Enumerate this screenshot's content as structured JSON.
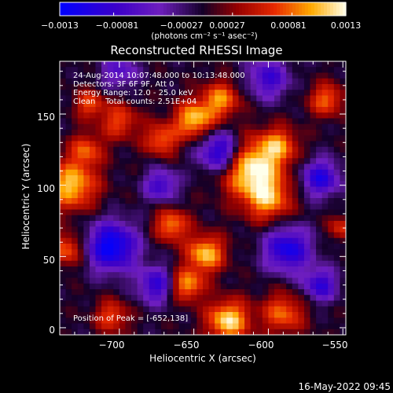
{
  "chart_data": {
    "type": "heatmap",
    "title": "Reconstructed RHESSI Image",
    "xlabel": "Heliocentric X (arcsec)",
    "ylabel": "Heliocentric Y (arcsec)",
    "xlim": [
      -740,
      -548
    ],
    "ylim": [
      -5,
      187
    ],
    "x_ticks": [
      -700,
      -650,
      -600,
      -550
    ],
    "x_tick_labels": [
      "−700",
      "−650",
      "−600",
      "−550"
    ],
    "y_ticks": [
      0,
      50,
      100,
      150
    ],
    "y_tick_labels": [
      "0",
      "50",
      "100",
      "150"
    ],
    "colorbar": {
      "ticks": [
        -0.0013,
        -0.00081,
        -0.00027,
        0.00027,
        0.00081,
        0.0013
      ],
      "tick_labels": [
        "−0.0013",
        "−0.00081",
        "−0.00027",
        "0.00027",
        "0.00081",
        "0.0013"
      ],
      "units": "(photons cm⁻² s⁻¹ asec⁻²)",
      "range": [
        -0.0013,
        0.0013
      ]
    },
    "annotations": [
      "24-Aug-2014 10:07:48.000 to 10:13:48.000",
      "Detectors: 3F 6F 9F, Att 0",
      "Energy Range: 12.0 - 25.0 keV",
      "Clean    Total counts: 2.51E+04"
    ],
    "peak_label": "Position of Peak = [-652,138]",
    "footer_date": "16-May-2022 09:45",
    "grid": false,
    "features": [
      {
        "x": -612,
        "y": 112,
        "s": 14,
        "a": 0.0013
      },
      {
        "x": -600,
        "y": 90,
        "s": 11,
        "a": 0.0009
      },
      {
        "x": -593,
        "y": 128,
        "s": 9,
        "a": 0.0008
      },
      {
        "x": -642,
        "y": 52,
        "s": 9,
        "a": 0.0011
      },
      {
        "x": -655,
        "y": 30,
        "s": 8,
        "a": 0.001
      },
      {
        "x": -665,
        "y": 72,
        "s": 8,
        "a": 0.0009
      },
      {
        "x": -650,
        "y": 146,
        "s": 9,
        "a": 0.0011
      },
      {
        "x": -632,
        "y": 160,
        "s": 9,
        "a": 0.0009
      },
      {
        "x": -672,
        "y": 132,
        "s": 8,
        "a": 0.0008
      },
      {
        "x": -732,
        "y": 100,
        "s": 12,
        "a": 0.0011
      },
      {
        "x": -722,
        "y": 125,
        "s": 8,
        "a": 0.0007
      },
      {
        "x": -720,
        "y": 157,
        "s": 7,
        "a": 0.0007
      },
      {
        "x": -735,
        "y": 55,
        "s": 8,
        "a": 0.0008
      },
      {
        "x": -705,
        "y": 8,
        "s": 8,
        "a": 0.0007
      },
      {
        "x": -627,
        "y": 5,
        "s": 10,
        "a": 0.0012
      },
      {
        "x": -590,
        "y": 10,
        "s": 10,
        "a": 0.0008
      },
      {
        "x": -561,
        "y": 160,
        "s": 8,
        "a": 0.0008
      },
      {
        "x": -551,
        "y": 70,
        "s": 6,
        "a": 0.0006
      },
      {
        "x": -700,
        "y": 145,
        "s": 9,
        "a": 0.0007
      },
      {
        "x": -632,
        "y": 123,
        "s": 10,
        "a": -0.0012
      },
      {
        "x": -705,
        "y": 57,
        "s": 12,
        "a": -0.0013
      },
      {
        "x": -672,
        "y": 100,
        "s": 8,
        "a": -0.0008
      },
      {
        "x": -587,
        "y": 55,
        "s": 11,
        "a": -0.0011
      },
      {
        "x": -565,
        "y": 105,
        "s": 9,
        "a": -0.001
      },
      {
        "x": -675,
        "y": 30,
        "s": 9,
        "a": -0.0009
      },
      {
        "x": -600,
        "y": 175,
        "s": 10,
        "a": -0.0008
      },
      {
        "x": -565,
        "y": 30,
        "s": 8,
        "a": -0.0009
      },
      {
        "x": -700,
        "y": 180,
        "s": 9,
        "a": -0.0006
      }
    ]
  }
}
